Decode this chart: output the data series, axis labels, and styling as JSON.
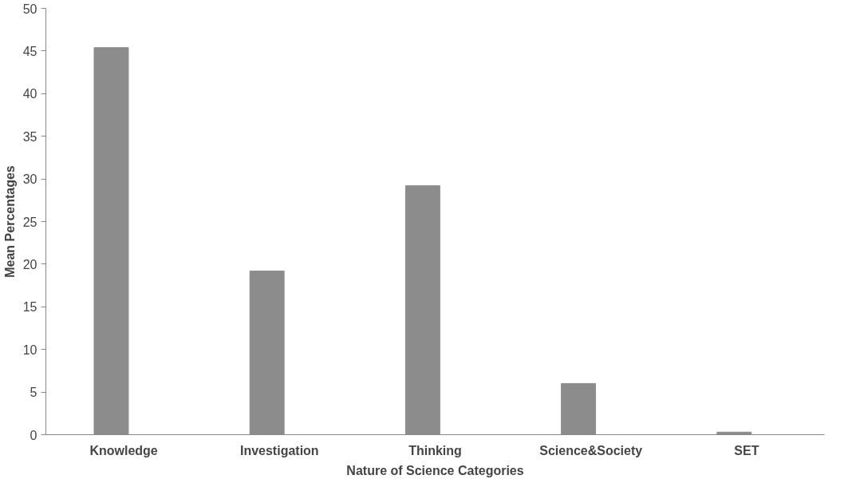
{
  "chart_data": {
    "type": "bar",
    "xlabel": "Nature of Science Categories",
    "ylabel": "Mean Percentages",
    "categories": [
      "Knowledge",
      "Investigation",
      "Thinking",
      "Science&Society",
      "SET"
    ],
    "values": [
      45.4,
      19.2,
      29.2,
      6.0,
      0.3
    ],
    "color": "#8c8c8c",
    "ylim": [
      0,
      50
    ],
    "yticks": [
      0,
      5,
      10,
      15,
      20,
      25,
      30,
      35,
      40,
      45,
      50
    ],
    "grid": false
  }
}
